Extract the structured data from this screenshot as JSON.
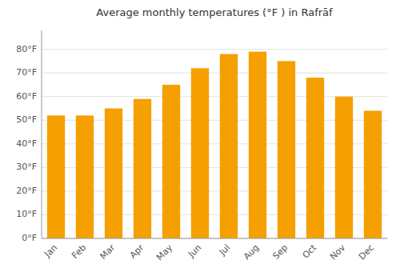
{
  "chart_data": {
    "type": "bar",
    "title": "Average monthly temperatures (°F ) in Rafrāf",
    "categories": [
      "Jan",
      "Feb",
      "Mar",
      "Apr",
      "May",
      "Jun",
      "Jul",
      "Aug",
      "Sep",
      "Oct",
      "Nov",
      "Dec"
    ],
    "values": [
      52,
      52,
      55,
      59,
      65,
      72,
      78,
      79,
      75,
      68,
      60,
      54
    ],
    "color": "#F5A000",
    "ylim": [
      0,
      88
    ],
    "yticks": [
      {
        "value": 0,
        "label": "0°F"
      },
      {
        "value": 10,
        "label": "10°F"
      },
      {
        "value": 20,
        "label": "20°F"
      },
      {
        "value": 30,
        "label": "30°F"
      },
      {
        "value": 40,
        "label": "40°F"
      },
      {
        "value": 50,
        "label": "50°F"
      },
      {
        "value": 60,
        "label": "60°F"
      },
      {
        "value": 70,
        "label": "70°F"
      },
      {
        "value": 80,
        "label": "80°F"
      }
    ],
    "grid": true
  }
}
